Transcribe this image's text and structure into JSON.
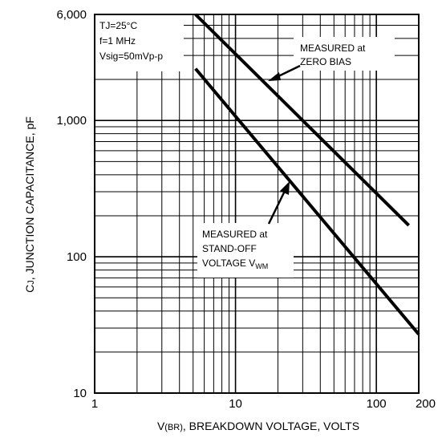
{
  "chart_data": {
    "type": "line",
    "x_scale": "log",
    "y_scale": "log",
    "xlim": [
      1,
      200
    ],
    "ylim": [
      10,
      6000
    ],
    "grid": true,
    "xlabel": "V(BR), BREAKDOWN VOLTAGE, VOLTS",
    "ylabel": "CJ, JUNCTION CAPACITANCE, pF",
    "x_ticks": [
      {
        "value": 1,
        "label": "1"
      },
      {
        "value": 10,
        "label": "10"
      },
      {
        "value": 100,
        "label": "100"
      },
      {
        "value": 200,
        "label": "200"
      }
    ],
    "y_ticks": [
      {
        "value": 10,
        "label": "10"
      },
      {
        "value": 100,
        "label": "100"
      },
      {
        "value": 1000,
        "label": "1,000"
      },
      {
        "value": 6000,
        "label": "6,000"
      }
    ],
    "conditions": [
      "TJ=25°C",
      "f=1 MHz",
      "Vsig=50mVp-p"
    ],
    "series": [
      {
        "name": "MEASURED at ZERO BIAS",
        "points": [
          [
            5.2,
            6000
          ],
          [
            170,
            170
          ]
        ]
      },
      {
        "name": "MEASURED at STAND-OFF VOLTAGE VWM",
        "points": [
          [
            5.2,
            2400
          ],
          [
            200,
            27
          ]
        ]
      }
    ],
    "annotations": {
      "zero_bias": [
        "MEASURED at",
        "ZERO BIAS"
      ],
      "standoff": [
        "MEASURED at",
        "STAND-OFF",
        "VOLTAGE VWM"
      ]
    }
  }
}
